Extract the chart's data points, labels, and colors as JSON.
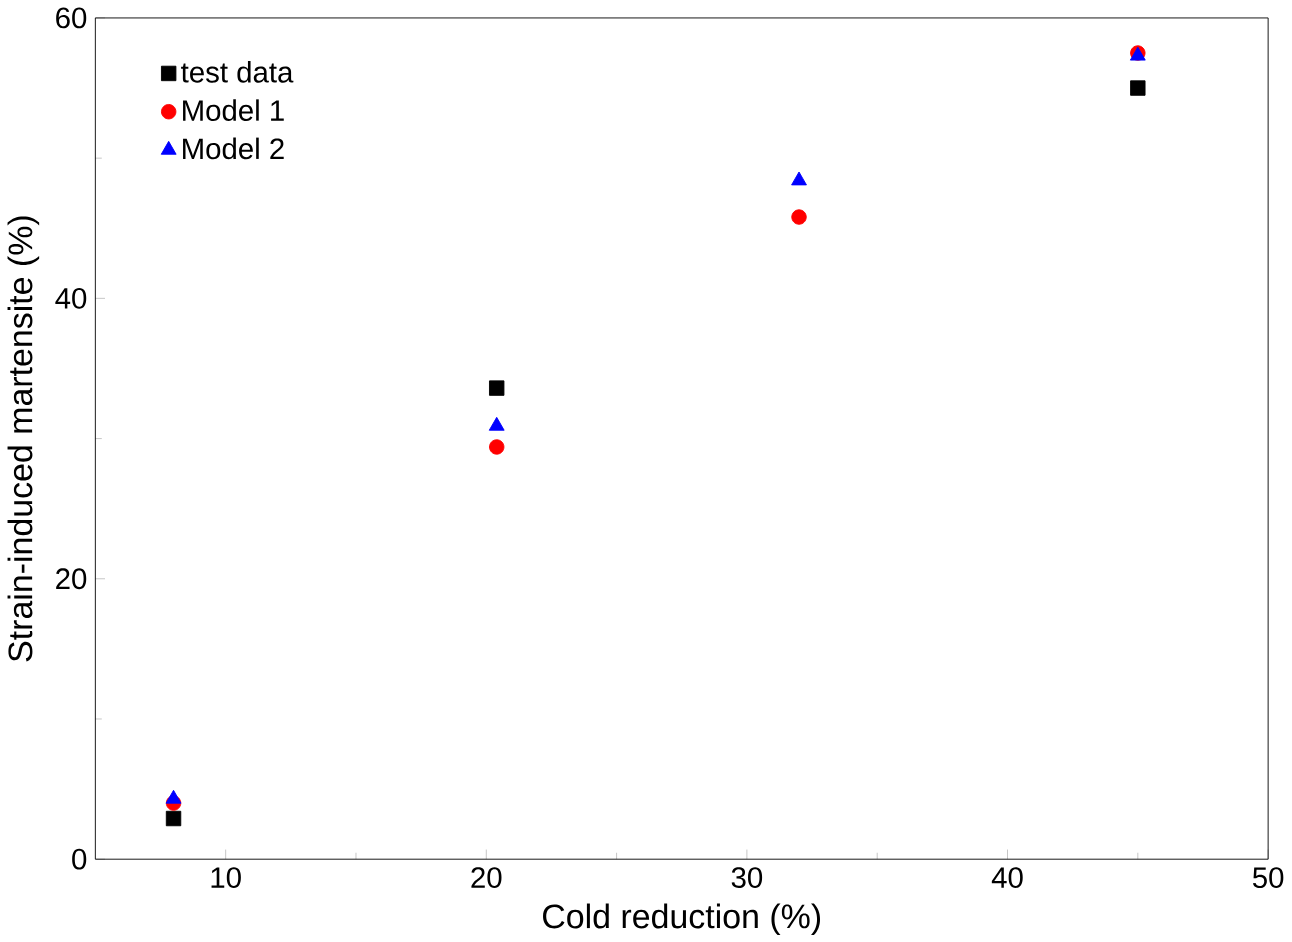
{
  "chart_data": {
    "type": "scatter",
    "xlabel": "Cold reduction (%)",
    "ylabel": "Strain-induced martensite (%)",
    "x": [
      8,
      20.4,
      32,
      45
    ],
    "series": [
      {
        "name": "test data",
        "color": "#000000",
        "marker": "square",
        "values": [
          2.9,
          33.6,
          null,
          55
        ]
      },
      {
        "name": "Model 1",
        "color": "#ff0000",
        "marker": "circle",
        "values": [
          4.0,
          29.4,
          45.8,
          57.5
        ]
      },
      {
        "name": "Model 2",
        "color": "#0000ff",
        "marker": "triangle",
        "values": [
          4.3,
          30.9,
          48.4,
          57.3
        ]
      }
    ],
    "xlim": [
      5,
      50
    ],
    "ylim": [
      0,
      60
    ],
    "xticks": [
      10,
      20,
      30,
      40,
      50
    ],
    "yticks": [
      0,
      20,
      40,
      60
    ],
    "grid": false,
    "legend": "top left"
  }
}
